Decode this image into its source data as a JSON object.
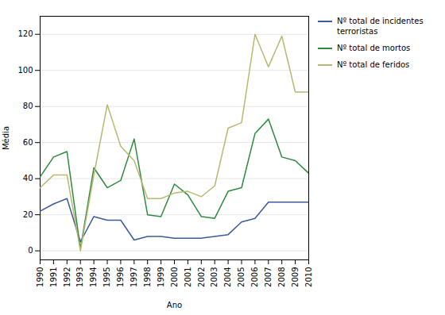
{
  "chart_data": {
    "type": "line",
    "x": [
      1990,
      1991,
      1992,
      1993,
      1994,
      1995,
      1996,
      1997,
      1998,
      1999,
      2000,
      2001,
      2002,
      2003,
      2004,
      2005,
      2006,
      2007,
      2008,
      2009,
      2010
    ],
    "series": [
      {
        "name": "Nº total de incidentes\nterroristas",
        "color": "#3a5a9c",
        "values": [
          22,
          26,
          29,
          5,
          19,
          17,
          17,
          6,
          8,
          8,
          7,
          7,
          7,
          8,
          9,
          16,
          18,
          27,
          27,
          27,
          27
        ]
      },
      {
        "name": "Nº total de mortos",
        "color": "#2e8b3e",
        "values": [
          41,
          52,
          55,
          1,
          46,
          35,
          39,
          62,
          20,
          19,
          37,
          31,
          19,
          18,
          33,
          35,
          65,
          73,
          52,
          50,
          43
        ]
      },
      {
        "name": "Nº total de feridos",
        "color": "#b8b870",
        "values": [
          35,
          42,
          42,
          0,
          42,
          81,
          58,
          50,
          29,
          29,
          32,
          33,
          30,
          36,
          68,
          71,
          120,
          102,
          119,
          88,
          88
        ]
      }
    ],
    "xlabel": "Ano",
    "ylabel": "Média",
    "xlim": [
      1990,
      2010
    ],
    "xticks": [
      1990,
      1991,
      1992,
      1993,
      1994,
      1995,
      1996,
      1997,
      1998,
      1999,
      2000,
      2001,
      2002,
      2003,
      2004,
      2005,
      2006,
      2007,
      2008,
      2009,
      2010
    ],
    "ylim": [
      -5,
      130
    ],
    "yticks": [
      0,
      20,
      40,
      60,
      80,
      100,
      120
    ],
    "grid": true,
    "legend": "right"
  }
}
